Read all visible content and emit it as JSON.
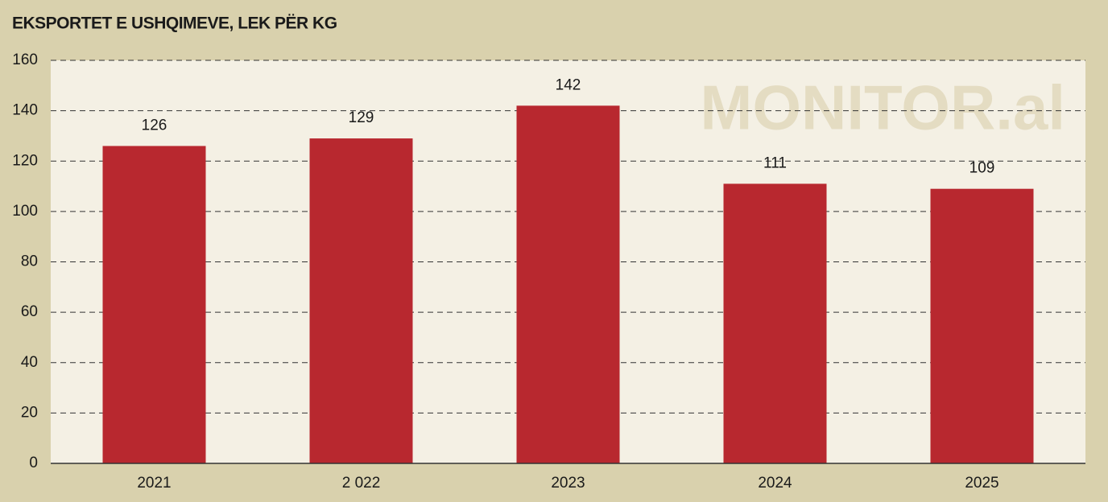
{
  "chart_data": {
    "type": "bar",
    "title": "EKSPORTET E USHQIMEVE, LEK PËR KG",
    "watermark": "MONITOR.al",
    "categories": [
      "2021",
      "2 022",
      "2023",
      "2024",
      "2025"
    ],
    "values": [
      126,
      129,
      142,
      111,
      109
    ],
    "color": "#b8282f",
    "ylim": [
      0,
      160
    ],
    "yticks": [
      0,
      20,
      40,
      60,
      80,
      100,
      120,
      140,
      160
    ],
    "grid": true
  }
}
